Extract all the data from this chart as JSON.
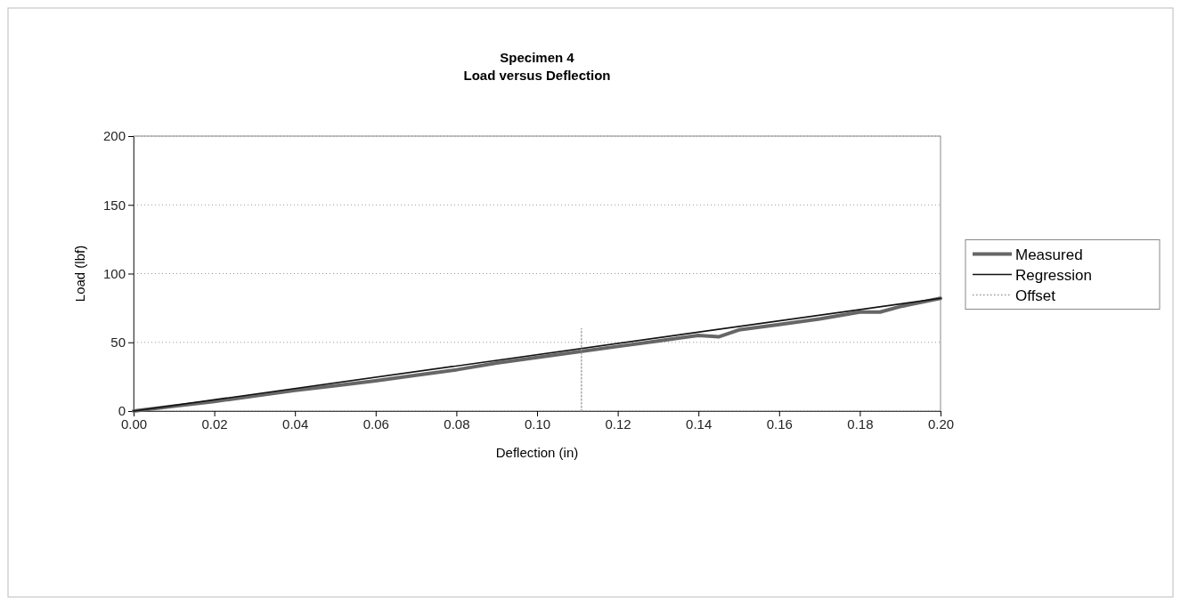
{
  "chart_data": {
    "type": "line",
    "title": "Specimen 4",
    "subtitle": "Load versus Deflection",
    "xlabel": "Deflection (in)",
    "ylabel": "Load (lbf)",
    "xlim": [
      0,
      0.2
    ],
    "xticks": [
      {
        "value": 0,
        "label": "0.00"
      },
      {
        "value": 0.02,
        "label": "0.02"
      },
      {
        "value": 0.04,
        "label": "0.04"
      },
      {
        "value": 0.06,
        "label": "0.06"
      },
      {
        "value": 0.08,
        "label": "0.08"
      },
      {
        "value": 0.1,
        "label": "0.10"
      },
      {
        "value": 0.12,
        "label": "0.12"
      },
      {
        "value": 0.14,
        "label": "0.14"
      },
      {
        "value": 0.16,
        "label": "0.16"
      },
      {
        "value": 0.18,
        "label": "0.18"
      },
      {
        "value": 0.2,
        "label": "0.20"
      }
    ],
    "ylim": [
      0,
      200
    ],
    "yticks": [
      0,
      50,
      100,
      150,
      200
    ],
    "grid": "y",
    "legend": "right",
    "marker": "none",
    "series": [
      {
        "name": "Measured",
        "color": "#666666",
        "line_style": "solid",
        "x": [
          0,
          0.01,
          0.02,
          0.03,
          0.04,
          0.05,
          0.06,
          0.07,
          0.08,
          0.09,
          0.1,
          0.11,
          0.12,
          0.13,
          0.14,
          0.145,
          0.15,
          0.16,
          0.17,
          0.18,
          0.185,
          0.19,
          0.2
        ],
        "values": [
          0,
          3.5,
          7,
          11,
          15,
          18.5,
          22,
          26,
          30,
          35,
          39,
          43,
          47,
          51,
          55,
          54,
          59,
          63,
          67,
          72,
          72,
          76,
          82
        ]
      },
      {
        "name": "Regression",
        "color": "#111111",
        "line_style": "solid",
        "x": [
          0,
          0.2
        ],
        "values": [
          0,
          82
        ]
      },
      {
        "name": "Offset",
        "color": "#999999",
        "line_style": "dotted",
        "x": [
          0.111,
          0.111
        ],
        "values": [
          0,
          60
        ]
      }
    ]
  }
}
